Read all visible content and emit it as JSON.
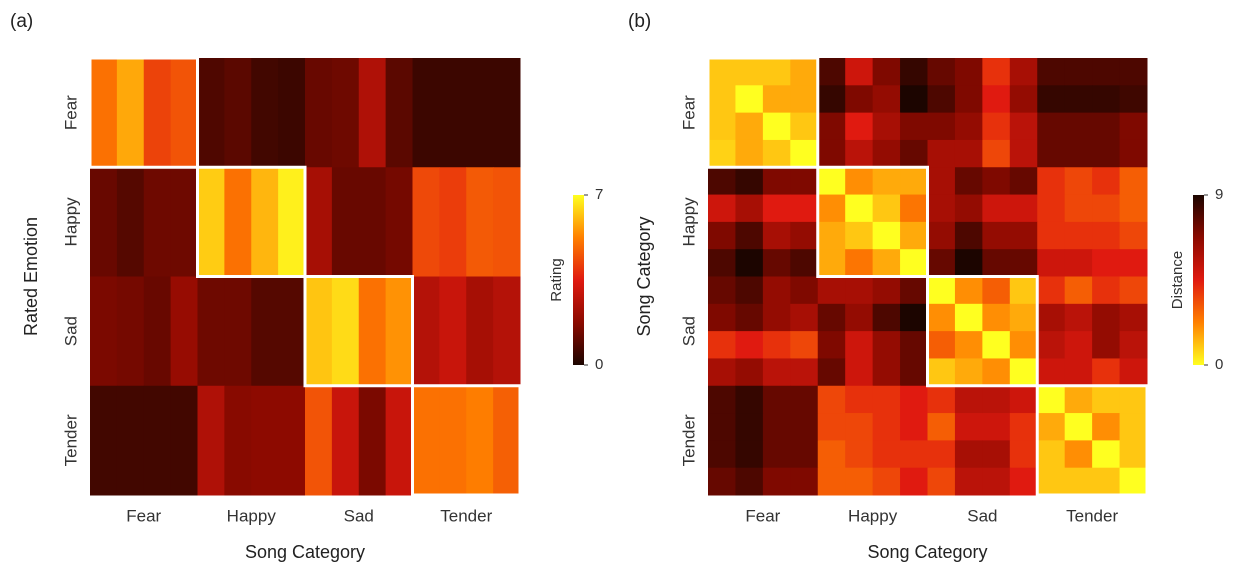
{
  "chart_data": [
    {
      "type": "heatmap",
      "panel_label": "(a)",
      "x_label": "Song Category",
      "y_label": "Rated Emotion",
      "x_groups": [
        "Fear",
        "Happy",
        "Sad",
        "Tender"
      ],
      "y_groups": [
        "Fear",
        "Happy",
        "Sad",
        "Tender"
      ],
      "values": [
        [
          5.0,
          5.8,
          4.2,
          4.5,
          0.8,
          1.0,
          0.6,
          0.5,
          1.2,
          1.3,
          2.5,
          1.0,
          0.5,
          0.5,
          0.5,
          0.5
        ],
        [
          1.2,
          0.9,
          1.3,
          1.3,
          6.3,
          5.0,
          6.0,
          6.8,
          2.3,
          1.2,
          1.2,
          1.4,
          4.3,
          4.1,
          4.6,
          4.5
        ],
        [
          1.5,
          1.4,
          1.2,
          2.0,
          1.3,
          1.3,
          0.9,
          0.9,
          6.2,
          6.5,
          5.0,
          5.5,
          2.6,
          3.0,
          2.3,
          2.6
        ],
        [
          0.6,
          0.6,
          0.6,
          0.6,
          2.5,
          1.7,
          1.8,
          1.8,
          4.5,
          3.0,
          1.5,
          3.0,
          5.0,
          5.0,
          5.2,
          4.7
        ]
      ],
      "zlim": [
        0,
        7
      ],
      "zticks": [
        0,
        7
      ],
      "colorbar_label": "Rating",
      "colorscale": [
        "#1c0500",
        "#8b0a00",
        "#e01a10",
        "#ff8000",
        "#ffff20"
      ]
    },
    {
      "type": "heatmap",
      "panel_label": "(b)",
      "x_label": "Song Category",
      "y_label": "Song Category",
      "x_groups": [
        "Fear",
        "Happy",
        "Sad",
        "Tender"
      ],
      "y_groups": [
        "Fear",
        "Happy",
        "Sad",
        "Tender"
      ],
      "values": [
        [
          1,
          1,
          1,
          1.5,
          8,
          5,
          7,
          8.5,
          7.5,
          7,
          4,
          6,
          8,
          8,
          8,
          8
        ],
        [
          1,
          0,
          1.5,
          1.5,
          8.5,
          7,
          6.5,
          9,
          8,
          7,
          4.5,
          6.5,
          8.5,
          8.5,
          8.5,
          8.3
        ],
        [
          1,
          1.5,
          0,
          1,
          7,
          4.5,
          6,
          7,
          7,
          6.5,
          4,
          5.5,
          7.5,
          7.5,
          7.5,
          7
        ],
        [
          0.8,
          1.5,
          1,
          0,
          7,
          5.5,
          6.5,
          7.5,
          6,
          6,
          3.5,
          5.5,
          7.5,
          7.5,
          7.5,
          7
        ],
        [
          8,
          8.5,
          7,
          7,
          0,
          2,
          1.5,
          1.5,
          6,
          7.5,
          7,
          7.5,
          4,
          3.5,
          4,
          3
        ],
        [
          5,
          6,
          4.5,
          4.5,
          2,
          0,
          1,
          2.5,
          6,
          6.5,
          5,
          5,
          4,
          3.5,
          3.5,
          3
        ],
        [
          7,
          8,
          6,
          6.5,
          1.5,
          1,
          0,
          1.5,
          6.5,
          8,
          6.5,
          6.5,
          4,
          4,
          4,
          3.5
        ],
        [
          8,
          9,
          7.5,
          8,
          1.5,
          2.5,
          1.5,
          0,
          7.5,
          9,
          7.5,
          7.5,
          5,
          5,
          4.5,
          4.5
        ],
        [
          7.5,
          8,
          6.5,
          7,
          6,
          6,
          6.5,
          7.5,
          0,
          2,
          3,
          1,
          4,
          3,
          4,
          3.5
        ],
        [
          7,
          7.5,
          6.5,
          6,
          7.5,
          6.5,
          8,
          9,
          2,
          0,
          2,
          1.5,
          6,
          5.5,
          6.5,
          6
        ],
        [
          4,
          4.5,
          4,
          3.5,
          7,
          5,
          6.5,
          7.5,
          3,
          2,
          0,
          2,
          5.5,
          5,
          6.5,
          5.5
        ],
        [
          6,
          6.5,
          5.5,
          5.5,
          7.5,
          5,
          6.5,
          7.5,
          1,
          1.5,
          2,
          0,
          5,
          5,
          4,
          5
        ],
        [
          8,
          8.5,
          7.5,
          7.5,
          3.5,
          4,
          4,
          4.5,
          4,
          5.5,
          5.5,
          5,
          0,
          1.5,
          1,
          1
        ],
        [
          8,
          8.5,
          7.5,
          7.5,
          3.5,
          3.5,
          4,
          4.5,
          3,
          5,
          5,
          4,
          1.5,
          0,
          2,
          1
        ],
        [
          8,
          8.5,
          7.5,
          7.5,
          3,
          3.5,
          4,
          4,
          4,
          6,
          6,
          4,
          1,
          2,
          0,
          1
        ],
        [
          7.5,
          8,
          7,
          7,
          3,
          3,
          3.5,
          4.5,
          3.5,
          5.5,
          5.5,
          4.5,
          1,
          1,
          1,
          0
        ]
      ],
      "zlim": [
        0,
        9
      ],
      "zticks": [
        0,
        9
      ],
      "colorbar_label": "Distance",
      "colorscale": [
        "#ffff20",
        "#ff8000",
        "#e01a10",
        "#8b0a00",
        "#1c0500"
      ]
    }
  ]
}
